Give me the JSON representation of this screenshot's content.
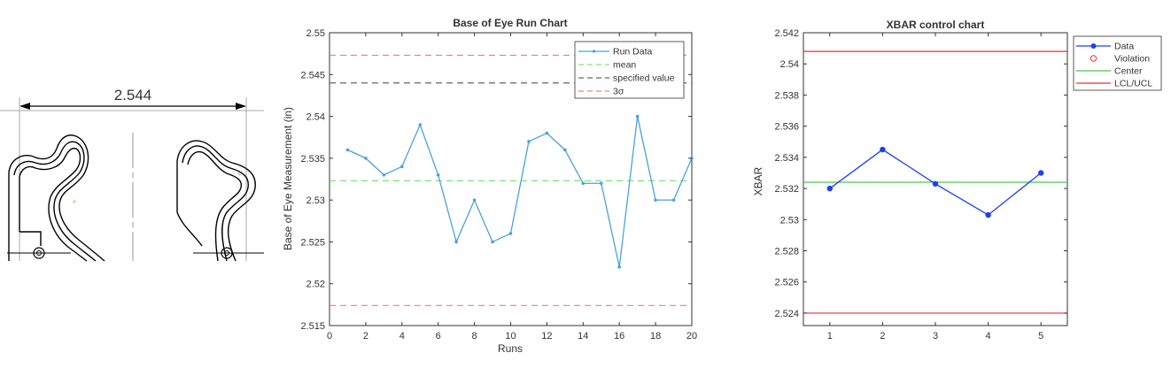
{
  "drawing": {
    "dimension_label": "2.544"
  },
  "chart_data": [
    {
      "type": "line",
      "title": "Base of Eye Run Chart",
      "xlabel": "Runs",
      "ylabel": "Base of Eye Measurement (in)",
      "xlim": [
        0,
        20
      ],
      "ylim": [
        2.515,
        2.55
      ],
      "x_ticks": [
        0,
        2,
        4,
        6,
        8,
        10,
        12,
        14,
        16,
        18,
        20
      ],
      "y_ticks": [
        2.515,
        2.52,
        2.525,
        2.53,
        2.535,
        2.54,
        2.545,
        2.55
      ],
      "legend_position": "top-right",
      "grid": false,
      "series": [
        {
          "name": "Run Data",
          "color": "#4aa3d8",
          "x": [
            1,
            2,
            3,
            4,
            5,
            6,
            7,
            8,
            9,
            10,
            11,
            12,
            13,
            14,
            15,
            16,
            17,
            18,
            19,
            20
          ],
          "values": [
            2.536,
            2.535,
            2.533,
            2.534,
            2.539,
            2.533,
            2.525,
            2.53,
            2.525,
            2.526,
            2.537,
            2.538,
            2.536,
            2.532,
            2.532,
            2.522,
            2.54,
            2.53,
            2.53,
            2.535
          ]
        }
      ],
      "reference_lines": [
        {
          "name": "mean",
          "value": 2.5323,
          "color": "#7ee07e",
          "style": "dashed"
        },
        {
          "name": "specified value",
          "value": 2.544,
          "color": "#666666",
          "style": "dashed"
        },
        {
          "name": "3σ",
          "value": 2.5473,
          "color": "#f08080",
          "style": "dashed"
        },
        {
          "name": "",
          "value": 2.5174,
          "color": "#f08080",
          "style": "dashed"
        }
      ]
    },
    {
      "type": "line",
      "title": "XBAR control chart",
      "xlabel": "",
      "ylabel": "XBAR",
      "xlim": [
        0.5,
        5.5
      ],
      "ylim": [
        2.5232,
        2.542
      ],
      "x_ticks": [
        1,
        2,
        3,
        4,
        5
      ],
      "y_ticks": [
        2.524,
        2.526,
        2.528,
        2.53,
        2.532,
        2.534,
        2.536,
        2.538,
        2.54,
        2.542
      ],
      "legend_position": "outside-top-right",
      "grid": false,
      "series": [
        {
          "name": "Data",
          "color": "#1f3ff0",
          "x": [
            1,
            2,
            3,
            4,
            5
          ],
          "values": [
            2.532,
            2.5345,
            2.5323,
            2.5303,
            2.533
          ]
        }
      ],
      "legend_extra": [
        "Violation"
      ],
      "reference_lines": [
        {
          "name": "Center",
          "value": 2.5324,
          "color": "#4cc84c",
          "style": "solid"
        },
        {
          "name": "LCL/UCL",
          "value": 2.5408,
          "color": "#e83030",
          "style": "solid"
        },
        {
          "name": "",
          "value": 2.524,
          "color": "#e83030",
          "style": "solid"
        }
      ],
      "violation_color": "#e83030"
    }
  ]
}
